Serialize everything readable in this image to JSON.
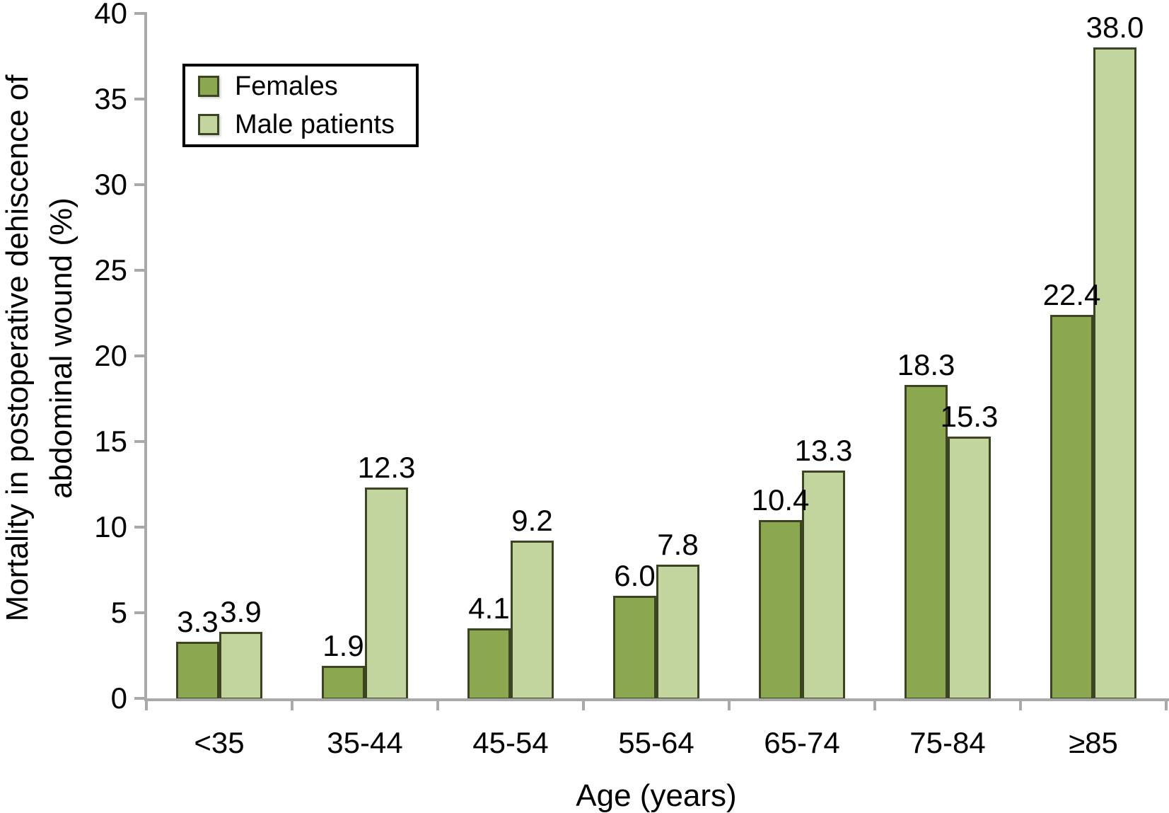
{
  "figure": {
    "y_axis_title_line1": "Mortality in postoperative dehiscence of",
    "y_axis_title_line2": "abdominal wound (%)",
    "x_axis_title": "Age (years)"
  },
  "chart_data": {
    "type": "bar",
    "title": "",
    "xlabel": "Age (years)",
    "ylabel": "Mortality in postoperative dehiscence of abdominal wound (%)",
    "categories": [
      "<35",
      "35-44",
      "45-54",
      "55-64",
      "65-74",
      "75-84",
      "≥85"
    ],
    "series": [
      {
        "name": "Females",
        "color": "#8ba750",
        "border_color": "#3c4424",
        "values": [
          3.3,
          1.9,
          4.1,
          6.0,
          10.4,
          18.3,
          22.4
        ]
      },
      {
        "name": "Male patients",
        "color": "#c3d59e",
        "border_color": "#3c4424",
        "values": [
          3.9,
          12.3,
          9.2,
          7.8,
          13.3,
          15.3,
          38.0
        ]
      }
    ],
    "value_labels": [
      "3.3",
      "1.9",
      "4.1",
      "6.0",
      "10.4",
      "18.3",
      "22.4",
      "3.9",
      "12.3",
      "9.2",
      "7.8",
      "13.3",
      "15.3",
      "38.0"
    ],
    "ylim": [
      0,
      40
    ],
    "ytick_step": 5,
    "yticks": [
      0,
      5,
      10,
      15,
      20,
      25,
      30,
      35,
      40
    ],
    "grid": false,
    "legend_position": "top-left",
    "axis_color": "#a9a9a9",
    "text_color": "#000000",
    "background_color": "#ffffff"
  }
}
